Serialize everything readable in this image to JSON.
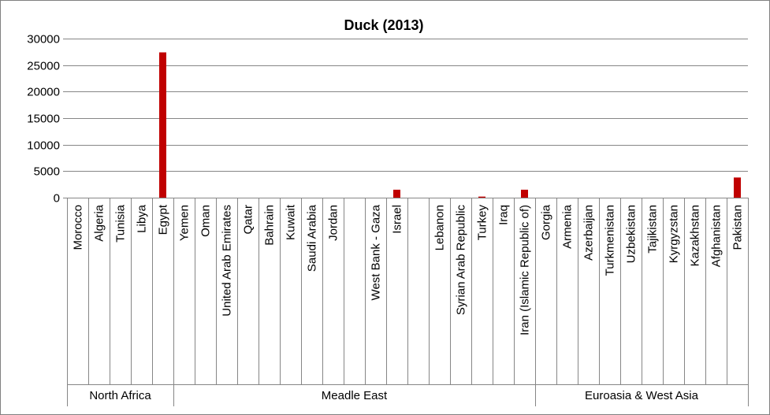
{
  "chart_data": {
    "type": "bar",
    "title": "Duck (2013)",
    "xlabel": "",
    "ylabel": "",
    "ylim": [
      0,
      30000
    ],
    "yticks": [
      "0",
      "5000",
      "10000",
      "15000",
      "20000",
      "25000",
      "30000"
    ],
    "grid": true,
    "legend": "none",
    "bar_color": "#C00000",
    "categories": [
      "Morocco",
      "Algeria",
      "Tunisia",
      "Libya",
      "Egypt",
      "Yemen",
      "Oman",
      "United Arab Emirates",
      "Qatar",
      "Bahrain",
      "Kuwait",
      "Saudi Arabia",
      "Jordan",
      "",
      "West Bank - Gaza",
      "Israel",
      "",
      "Lebanon",
      "Syrian Arab Republic",
      "Turkey",
      "Iraq",
      "Iran (Islamic Republic of)",
      "Gorgia",
      "Armenia",
      "Azerbaijan",
      "Turkmenistan",
      "Uzbekistan",
      "Tajikistan",
      "Kyrgyzstan",
      "Kazakhstan",
      "Afghanistan",
      "Pakistan"
    ],
    "values": [
      0,
      0,
      0,
      0,
      27400,
      0,
      0,
      0,
      0,
      0,
      0,
      0,
      0,
      0,
      0,
      1500,
      0,
      0,
      0,
      200,
      0,
      1500,
      0,
      0,
      0,
      0,
      0,
      0,
      0,
      0,
      0,
      3800
    ],
    "groups": [
      {
        "label": "North Africa",
        "start": 0,
        "end": 4
      },
      {
        "label": "Meadle East",
        "start": 5,
        "end": 21
      },
      {
        "label": "Euroasia & West Asia",
        "start": 22,
        "end": 31
      }
    ]
  }
}
